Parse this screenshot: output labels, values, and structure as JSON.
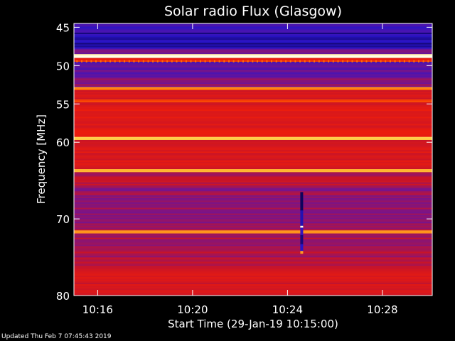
{
  "chart_data": {
    "type": "heatmap",
    "title": "Solar radio Flux (Glasgow)",
    "xlabel": "Start Time (29-Jan-19 10:15:00)",
    "ylabel": "Frequency [MHz]",
    "x_ticks": [
      "10:16",
      "10:20",
      "10:24",
      "10:28"
    ],
    "x_tick_minutes": [
      16,
      20,
      24,
      28
    ],
    "xlim_minutes": [
      15.0,
      30.1
    ],
    "y_ticks": [
      45,
      50,
      55,
      60,
      70,
      80
    ],
    "ylim": [
      44.5,
      80
    ],
    "colormap": "blue-red-yellow-white",
    "bands": [
      {
        "from": 44.5,
        "to": 45.7,
        "level": 0.18
      },
      {
        "from": 45.7,
        "to": 47.8,
        "level": 0.1
      },
      {
        "from": 47.8,
        "to": 48.5,
        "level": 0.28
      },
      {
        "from": 48.5,
        "to": 49.0,
        "level": 1.0
      },
      {
        "from": 49.0,
        "to": 49.5,
        "level": 0.55
      },
      {
        "from": 49.5,
        "to": 51.5,
        "level": 0.22
      },
      {
        "from": 51.5,
        "to": 52.8,
        "level": 0.3
      },
      {
        "from": 52.8,
        "to": 53.2,
        "level": 0.72
      },
      {
        "from": 53.2,
        "to": 54.4,
        "level": 0.45
      },
      {
        "from": 54.4,
        "to": 54.8,
        "level": 0.65
      },
      {
        "from": 54.8,
        "to": 59.3,
        "level": 0.48
      },
      {
        "from": 59.3,
        "to": 59.7,
        "level": 0.85
      },
      {
        "from": 59.7,
        "to": 63.5,
        "level": 0.46
      },
      {
        "from": 63.5,
        "to": 63.9,
        "level": 0.78
      },
      {
        "from": 63.9,
        "to": 66.0,
        "level": 0.38
      },
      {
        "from": 66.0,
        "to": 71.5,
        "level": 0.32
      },
      {
        "from": 71.5,
        "to": 71.9,
        "level": 0.75
      },
      {
        "from": 71.9,
        "to": 76.5,
        "level": 0.35
      },
      {
        "from": 76.5,
        "to": 80.0,
        "level": 0.44
      }
    ],
    "burst": {
      "minute": 24.6,
      "from": 66.5,
      "to": 74.5
    }
  },
  "footer": "Updated Thu Feb  7 07:45:43 2019"
}
